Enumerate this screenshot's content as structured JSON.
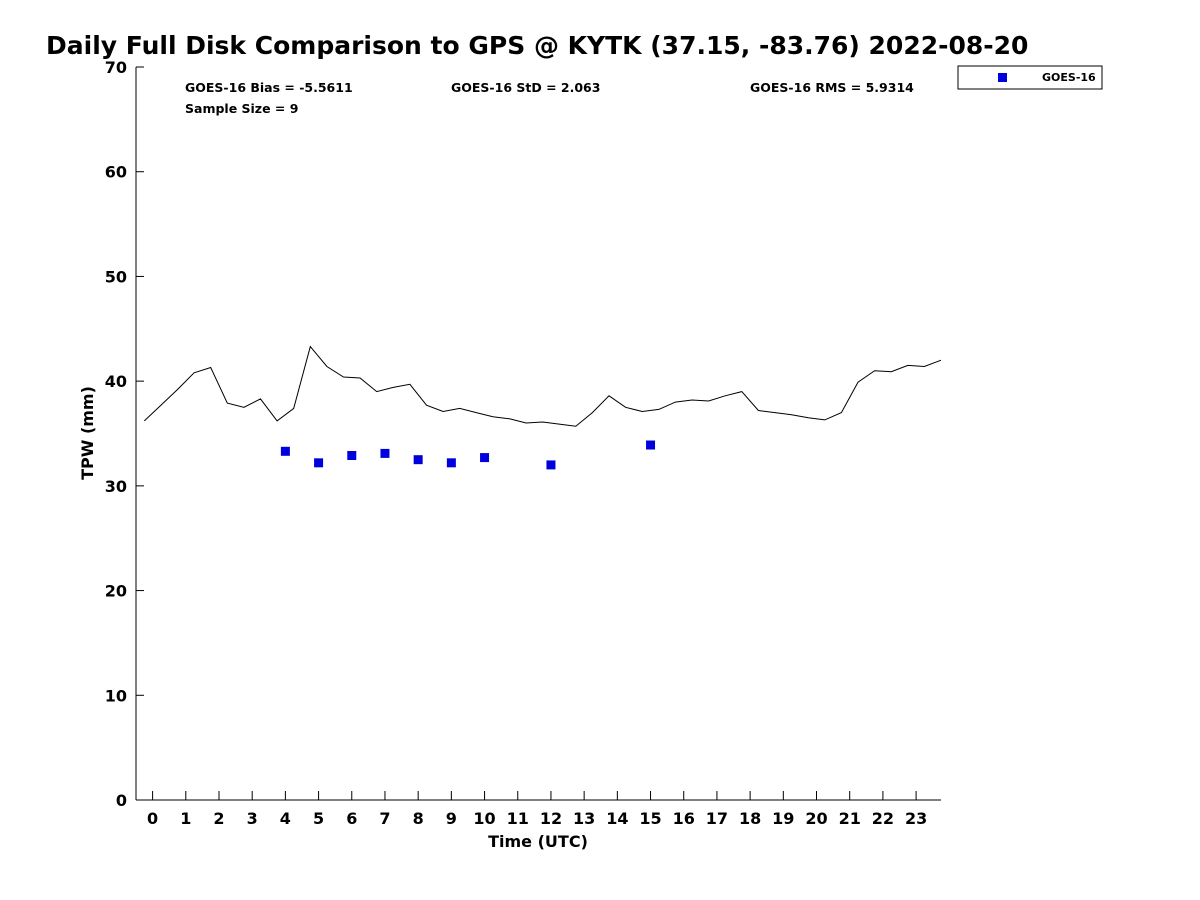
{
  "chart_data": {
    "type": "scatter",
    "title": "Daily Full Disk Comparison to GPS @ KYTK (37.15, -83.76) 2022-08-20",
    "xlabel": "Time (UTC)",
    "ylabel": "TPW (mm)",
    "xlim": [
      -0.5,
      23.75
    ],
    "ylim": [
      0,
      70
    ],
    "xticks": [
      0,
      1,
      2,
      3,
      4,
      5,
      6,
      7,
      8,
      9,
      10,
      11,
      12,
      13,
      14,
      15,
      16,
      17,
      18,
      19,
      20,
      21,
      22,
      23
    ],
    "xtick_labels": [
      "0",
      "1",
      "2",
      "3",
      "4",
      "5",
      "6",
      "7",
      "8",
      "9",
      "10",
      "11",
      "12",
      "13",
      "14",
      "15",
      "16",
      "17",
      "18",
      "19",
      "20",
      "21",
      "22",
      "23"
    ],
    "yticks": [
      0,
      10,
      20,
      30,
      40,
      50,
      60,
      70
    ],
    "ytick_labels": [
      "0",
      "10",
      "20",
      "30",
      "40",
      "50",
      "60",
      "70"
    ],
    "grid": false,
    "legend_position": "top-right-outside",
    "stats": {
      "bias": "GOES-16 Bias = -5.5611",
      "std": "GOES-16 StD = 2.063",
      "rms": "GOES-16 RMS = 5.9314",
      "sample": "Sample Size = 9"
    },
    "gps_line": {
      "color": "#000000",
      "x": [
        -0.25,
        0.25,
        0.75,
        1.25,
        1.75,
        2.25,
        2.75,
        3.25,
        3.75,
        4.25,
        4.75,
        5.25,
        5.75,
        6.25,
        6.75,
        7.25,
        7.75,
        8.25,
        8.75,
        9.25,
        9.75,
        10.25,
        10.75,
        11.25,
        11.75,
        12.25,
        12.75,
        13.25,
        13.75,
        14.25,
        14.75,
        15.25,
        15.75,
        16.25,
        16.75,
        17.25,
        17.75,
        18.25,
        18.75,
        19.25,
        19.75,
        20.25,
        20.75,
        21.25,
        21.75,
        22.25,
        22.75,
        23.25,
        23.75
      ],
      "y": [
        36.2,
        37.7,
        39.2,
        40.8,
        41.3,
        37.9,
        37.5,
        38.3,
        36.2,
        37.4,
        43.3,
        41.4,
        40.4,
        40.3,
        39.0,
        39.4,
        39.7,
        37.7,
        37.1,
        37.4,
        37.0,
        36.6,
        36.4,
        36.0,
        36.1,
        35.9,
        35.7,
        37.0,
        38.6,
        37.5,
        37.1,
        37.3,
        38.0,
        38.2,
        38.1,
        38.6,
        39.0,
        37.2,
        37.0,
        36.8,
        36.5,
        36.3,
        37.0,
        39.9,
        41.0,
        40.9,
        41.5,
        41.4,
        42.0
      ]
    },
    "series": [
      {
        "name": "GOES-16",
        "color": "#0000dd",
        "x": [
          4,
          5,
          6,
          7,
          8,
          9,
          10,
          12,
          15
        ],
        "y": [
          33.3,
          32.2,
          32.9,
          33.1,
          32.5,
          32.2,
          32.7,
          32.0,
          33.9
        ]
      }
    ]
  }
}
